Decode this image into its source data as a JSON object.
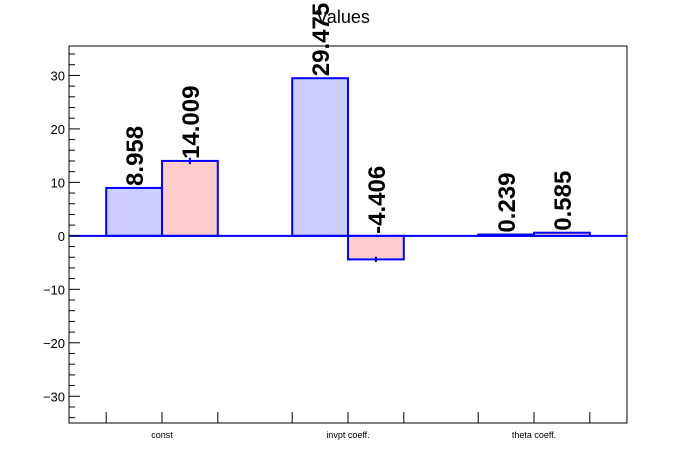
{
  "chart_data": {
    "type": "bar",
    "title": "Values",
    "categories": [
      "const",
      "invpt coeff.",
      "theta coeff."
    ],
    "series": [
      {
        "values": [
          8.958,
          29.475,
          0.239
        ],
        "errors": [
          0,
          0,
          0
        ],
        "labels": [
          "8.958",
          "29.475",
          "0.239"
        ],
        "color": "#ccccff"
      },
      {
        "values": [
          14.009,
          -4.406,
          0.585
        ],
        "errors": [
          0.6,
          0.5,
          0.1
        ],
        "labels": [
          "14.009",
          "-4.406",
          "0.585"
        ],
        "color": "#ffcccc"
      }
    ],
    "edge_color": "#0000ff",
    "ylim": [
      -35,
      35.5
    ],
    "yticks": [
      -30,
      -20,
      -10,
      0,
      10,
      20,
      30
    ],
    "ytick_labels": [
      "−30",
      "−20",
      "−10",
      "0",
      "10",
      "20",
      "30"
    ],
    "xlabel": "",
    "ylabel": "",
    "legend": "none",
    "grid": false
  }
}
